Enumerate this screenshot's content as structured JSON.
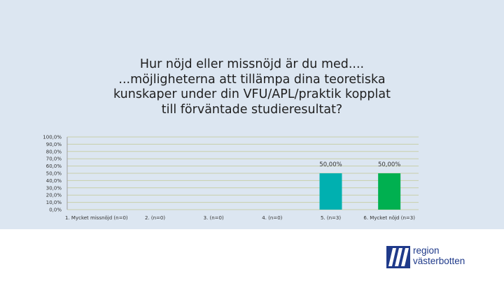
{
  "chart_data": {
    "type": "bar",
    "title_lines": [
      "Hur nöjd eller missnöjd är du med....",
      "...möjligheterna att tillämpa dina teoretiska",
      "kunskaper under din VFU/APL/praktik kopplat",
      "till förväntade studieresultat?"
    ],
    "categories": [
      "1. Mycket missnöjd (n=0)",
      "2. (n=0)",
      "3. (n=0)",
      "4. (n=0)",
      "5. (n=3)",
      "6. Mycket nöjd (n=3)"
    ],
    "values": [
      0,
      0,
      0,
      0,
      50,
      50
    ],
    "data_labels": [
      "",
      "",
      "",
      "",
      "50,00%",
      "50,00%"
    ],
    "bar_colors": [
      "#00b0b0",
      "#00b0b0",
      "#00b0b0",
      "#00b0b0",
      "#00b0b0",
      "#00b050"
    ],
    "y_ticks": [
      "0,0%",
      "10,0%",
      "20,0%",
      "30,0%",
      "40,0%",
      "50,0%",
      "60,0%",
      "70,0%",
      "80,0%",
      "90,0%",
      "100,0%"
    ],
    "ylim": [
      0,
      100
    ],
    "grid": true,
    "legend": "none"
  },
  "logo": {
    "line1": "region",
    "line2": "västerbotten",
    "icon": "region-vasterbotten-logo-icon",
    "color": "#1f3a8a"
  },
  "colors": {
    "background_panel": "#dce6f1",
    "gridline": "#c8cfaa"
  }
}
